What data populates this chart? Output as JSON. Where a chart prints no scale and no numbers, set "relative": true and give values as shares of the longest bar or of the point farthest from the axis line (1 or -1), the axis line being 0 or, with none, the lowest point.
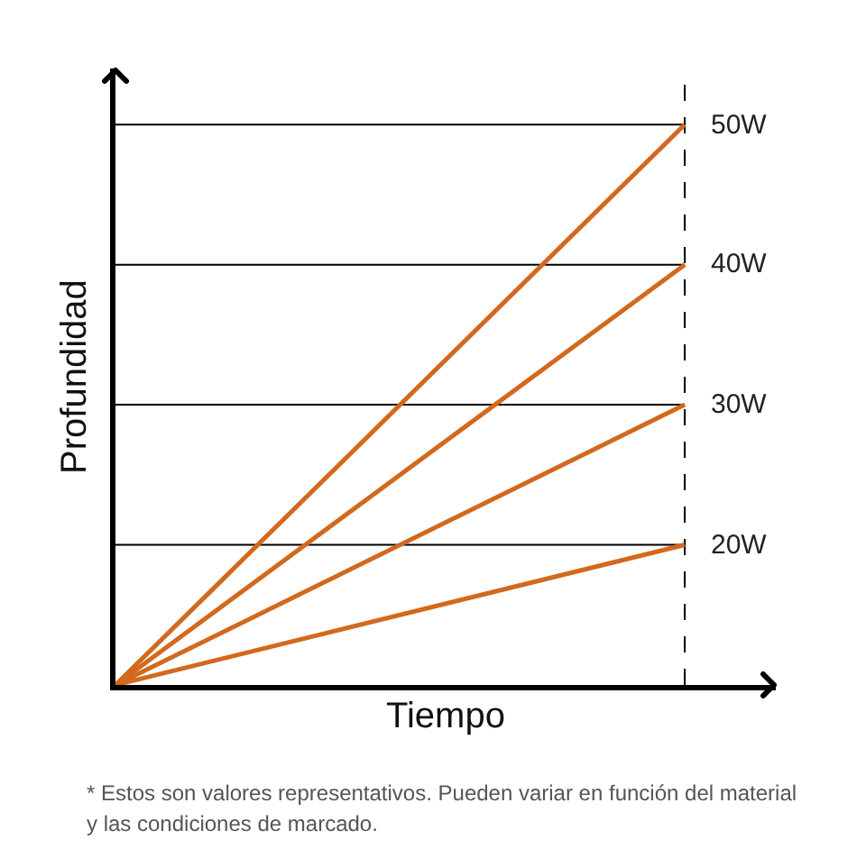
{
  "chart_data": {
    "type": "line",
    "xlabel": "Tiempo",
    "ylabel": "Profundidad",
    "categories": [
      null,
      null
    ],
    "relative": true,
    "legend": false,
    "grid": false,
    "marker": "none",
    "line_style": "solid",
    "series": [
      {
        "name": "50W",
        "color": "#d2691e",
        "values": [
          0,
          1
        ]
      },
      {
        "name": "40W",
        "color": "#d2691e",
        "values": [
          0,
          0.75
        ]
      },
      {
        "name": "30W",
        "color": "#d2691e",
        "values": [
          0,
          0.5
        ]
      },
      {
        "name": "20W",
        "color": "#d2691e",
        "values": [
          0,
          0.25
        ]
      }
    ],
    "ref_lines": [
      {
        "axis": "y",
        "value": 1,
        "color": "#000000",
        "line_style": "solid"
      },
      {
        "axis": "y",
        "value": 0.75,
        "color": "#000000",
        "line_style": "solid"
      },
      {
        "axis": "y",
        "value": 0.5,
        "color": "#000000",
        "line_style": "solid"
      },
      {
        "axis": "y",
        "value": 0.25,
        "color": "#000000",
        "line_style": "solid"
      }
    ],
    "annotations": [
      "* Estos son valores representativos. Pueden variar en función del material y las condiciones de marcado."
    ]
  }
}
